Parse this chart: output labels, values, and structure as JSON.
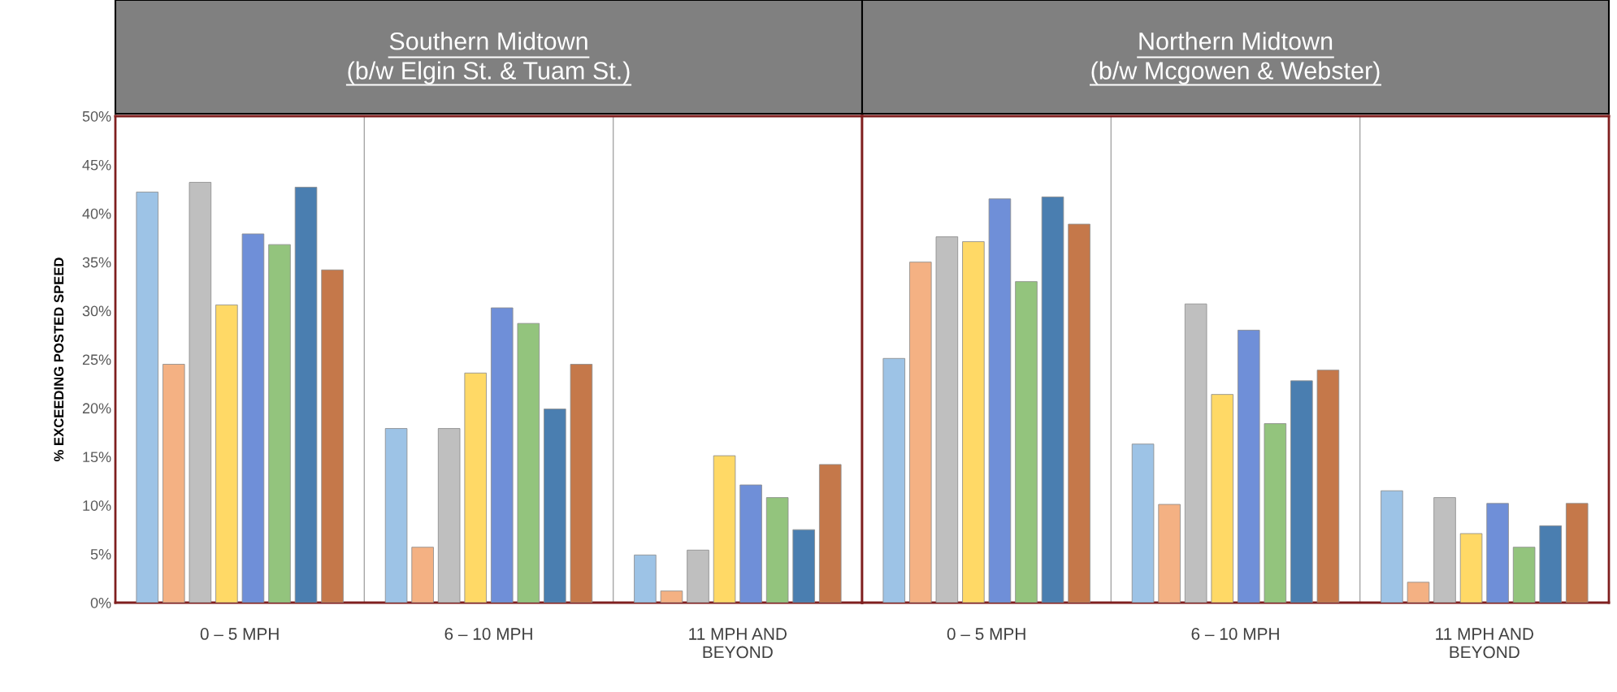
{
  "chart_data": [
    {
      "type": "bar",
      "title": "Southern Midtown\n(b/w Elgin St. & Tuam St.)",
      "ylabel": "% EXCEEDING POSTED SPEED",
      "categories": [
        "0 – 5 MPH",
        "6 – 10 MPH",
        "11 MPH AND\nBEYOND"
      ],
      "ylim": [
        0,
        50
      ],
      "yticks": [
        {
          "value": 0,
          "label": "0%"
        },
        {
          "value": 5,
          "label": "5%"
        },
        {
          "value": 10,
          "label": "10%"
        },
        {
          "value": 15,
          "label": "15%"
        },
        {
          "value": 20,
          "label": "20%"
        },
        {
          "value": 25,
          "label": "25%"
        },
        {
          "value": 30,
          "label": "30%"
        },
        {
          "value": 35,
          "label": "35%"
        },
        {
          "value": 40,
          "label": "40%"
        },
        {
          "value": 45,
          "label": "45%"
        },
        {
          "value": 50,
          "label": "50%"
        }
      ],
      "grid": "x",
      "legend": false,
      "series": [
        {
          "color": "#9dc3e6",
          "values": [
            42.2,
            17.9,
            4.9
          ]
        },
        {
          "color": "#f4b183",
          "values": [
            24.5,
            5.7,
            1.2
          ]
        },
        {
          "color": "#bfbfbf",
          "values": [
            43.2,
            17.9,
            5.4
          ]
        },
        {
          "color": "#ffd966",
          "values": [
            30.6,
            23.6,
            15.1
          ]
        },
        {
          "color": "#6f8fd8",
          "values": [
            37.9,
            30.3,
            12.1
          ]
        },
        {
          "color": "#93c47d",
          "values": [
            36.8,
            28.7,
            10.8
          ]
        },
        {
          "color": "#4a7eb0",
          "values": [
            42.7,
            19.9,
            7.5
          ]
        },
        {
          "color": "#c5784a",
          "values": [
            34.2,
            24.5,
            14.2
          ]
        }
      ]
    },
    {
      "type": "bar",
      "title": "Northern Midtown\n(b/w Mcgowen & Webster)",
      "categories": [
        "0 – 5 MPH",
        "6 – 10 MPH",
        "11 MPH AND\nBEYOND"
      ],
      "ylim": [
        0,
        50
      ],
      "tick_labels": "x",
      "grid": "x",
      "legend": false,
      "series": [
        {
          "color": "#9dc3e6",
          "values": [
            25.1,
            16.3,
            11.5
          ]
        },
        {
          "color": "#f4b183",
          "values": [
            35.0,
            10.1,
            2.1
          ]
        },
        {
          "color": "#bfbfbf",
          "values": [
            37.6,
            30.7,
            10.8
          ]
        },
        {
          "color": "#ffd966",
          "values": [
            37.1,
            21.4,
            7.1
          ]
        },
        {
          "color": "#6f8fd8",
          "values": [
            41.5,
            28.0,
            10.2
          ]
        },
        {
          "color": "#93c47d",
          "values": [
            33.0,
            18.4,
            5.7
          ]
        },
        {
          "color": "#4a7eb0",
          "values": [
            41.7,
            22.8,
            7.9
          ]
        },
        {
          "color": "#c5784a",
          "values": [
            38.9,
            23.9,
            10.2
          ]
        }
      ]
    }
  ]
}
